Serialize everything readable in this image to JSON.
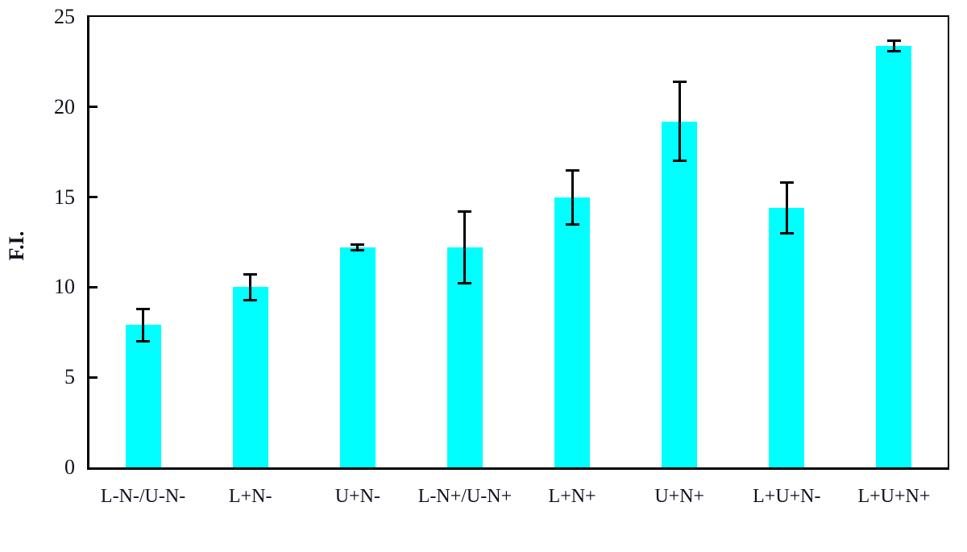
{
  "chart_data": {
    "type": "bar",
    "title": "",
    "xlabel": "",
    "ylabel": "F.I.",
    "ylim": [
      0,
      25
    ],
    "yticks": [
      0,
      5,
      10,
      15,
      20,
      25
    ],
    "grid": false,
    "legend_position": "none",
    "bar_color": "#00ffff",
    "axis_color": "#000000",
    "text_color": "#10101e",
    "error_bar_color": "#000000",
    "categories": [
      "L-N-/U-N-",
      "L+N-",
      "U+N-",
      "L-N+/U-N+",
      "L+N+",
      "U+N+",
      "L+U+N-",
      "L+U+N+"
    ],
    "values": [
      7.9,
      10.0,
      12.2,
      12.2,
      15.0,
      19.2,
      14.4,
      23.4
    ],
    "errors": [
      0.9,
      0.7,
      0.15,
      2.0,
      1.5,
      2.2,
      1.4,
      0.3
    ]
  }
}
